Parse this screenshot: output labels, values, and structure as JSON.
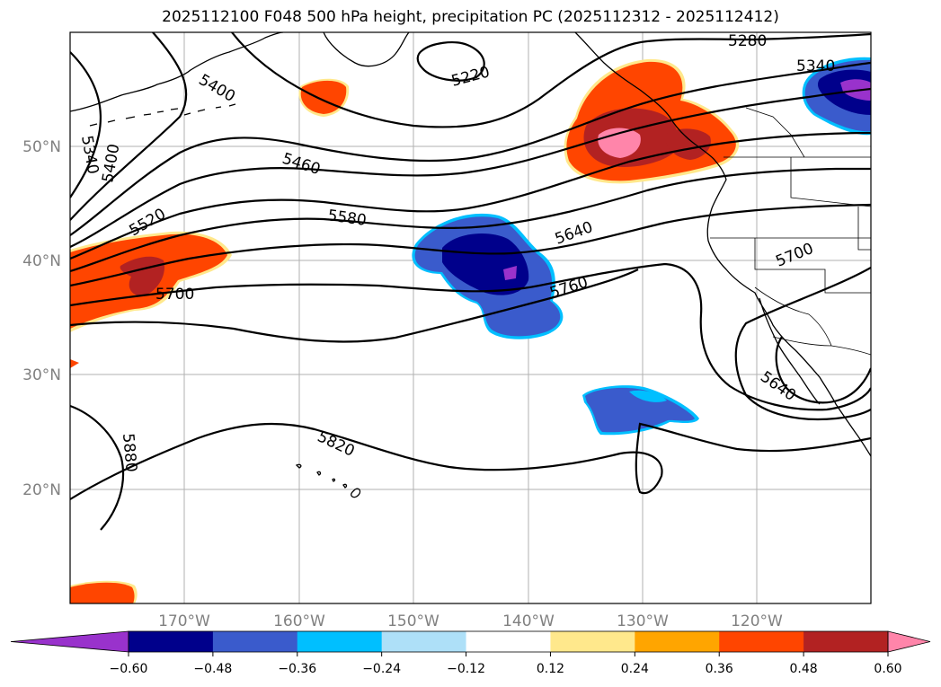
{
  "title": "2025112100 F048 500 hPa height, precipitation PC (2025112312 - 2025112412)",
  "lat_labels": [
    "50°N",
    "40°N",
    "30°N",
    "20°N"
  ],
  "lon_labels": [
    "170°W",
    "160°W",
    "150°W",
    "140°W",
    "130°W",
    "120°W"
  ],
  "contour_labels": [
    "5220",
    "5280",
    "5340",
    "5400",
    "5400",
    "5340",
    "5460",
    "5520",
    "5580",
    "5640",
    "5700",
    "5700",
    "5760",
    "5640",
    "5820",
    "5880"
  ],
  "colorbar": {
    "ticks": [
      "−0.60",
      "−0.48",
      "−0.36",
      "−0.24",
      "−0.12",
      "0.12",
      "0.24",
      "0.36",
      "0.48",
      "0.60"
    ],
    "colors": [
      "#9932cc",
      "#00008b",
      "#3a5bcc",
      "#00bfff",
      "#aee0f8",
      "#ffffff",
      "#ffe88c",
      "#ffa500",
      "#ff4500",
      "#b22222",
      "#ff85aa"
    ]
  }
}
